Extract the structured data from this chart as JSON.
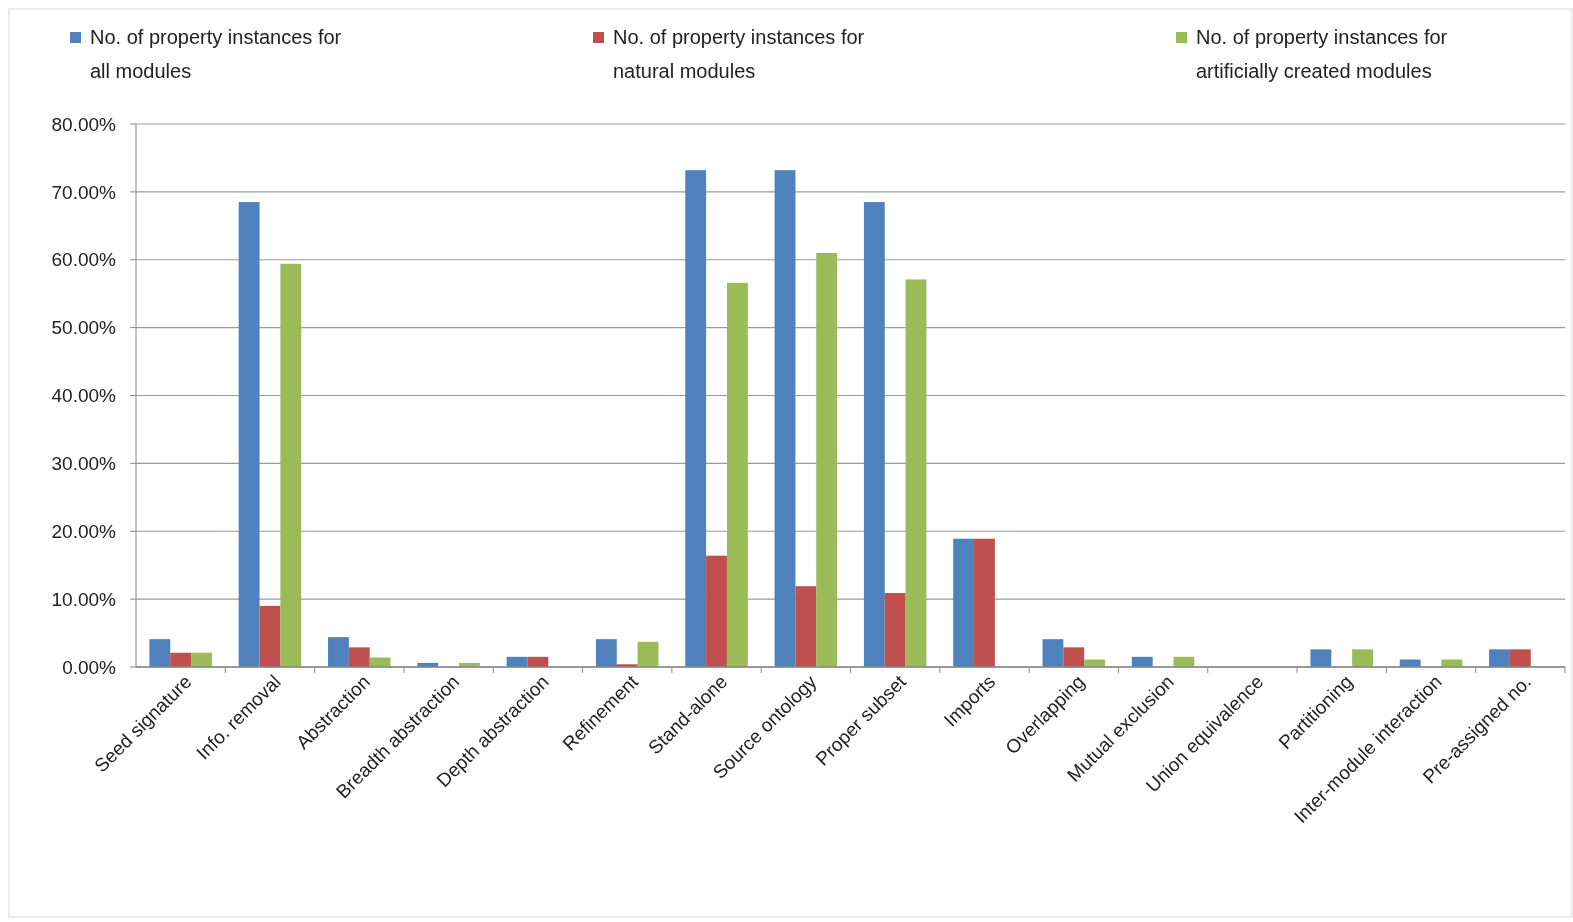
{
  "chart_data": {
    "type": "bar",
    "categories": [
      "Seed signature",
      "Info. removal",
      "Abstraction",
      "Breadth abstraction",
      "Depth abstraction",
      "Refinement",
      "Stand-alone",
      "Source ontology",
      "Proper subset",
      "Imports",
      "Overlapping",
      "Mutual exclusion",
      "Union equivalence",
      "Partitioning",
      "Inter-module interaction",
      "Pre-assigned no."
    ],
    "series": [
      {
        "name": "No. of property instances for all modules",
        "color": "#4f81bd",
        "values": [
          4.1,
          68.5,
          4.4,
          0.6,
          1.5,
          4.1,
          73.2,
          73.2,
          68.5,
          18.9,
          4.1,
          1.5,
          0,
          2.6,
          1.1,
          2.6
        ]
      },
      {
        "name": "No. of property instances for natural modules",
        "color": "#c0504d",
        "values": [
          2.1,
          9.0,
          2.9,
          0,
          1.5,
          0.4,
          16.4,
          11.9,
          10.9,
          18.9,
          2.9,
          0,
          0,
          0,
          0,
          2.6
        ]
      },
      {
        "name": "No. of property instances for artificially created modules",
        "color": "#9bbb59",
        "values": [
          2.1,
          59.4,
          1.4,
          0.6,
          0,
          3.7,
          56.6,
          61.0,
          57.1,
          0,
          1.1,
          1.5,
          0,
          2.6,
          1.1,
          0
        ]
      }
    ],
    "ylim": [
      0,
      80
    ],
    "yticks": [
      {
        "value": 0,
        "label": "0.00%"
      },
      {
        "value": 10,
        "label": "10.00%"
      },
      {
        "value": 20,
        "label": "20.00%"
      },
      {
        "value": 30,
        "label": "30.00%"
      },
      {
        "value": 40,
        "label": "40.00%"
      },
      {
        "value": 50,
        "label": "50.00%"
      },
      {
        "value": 60,
        "label": "60.00%"
      },
      {
        "value": 70,
        "label": "70.00%"
      },
      {
        "value": 80,
        "label": "80.00%"
      }
    ],
    "grid": "y",
    "legend": "top"
  }
}
